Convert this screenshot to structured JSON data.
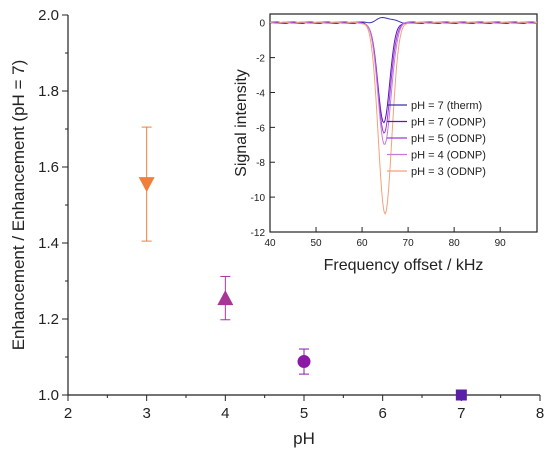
{
  "chart_data": [
    {
      "type": "scatter",
      "xlabel": "pH",
      "ylabel": "Enhancement / Enhancement (pH = 7)",
      "xlim": [
        2,
        8
      ],
      "ylim": [
        1.0,
        2.0
      ],
      "xticks": [
        "2",
        "3",
        "4",
        "5",
        "6",
        "7",
        "8"
      ],
      "yticks": [
        "1.0",
        "1.2",
        "1.4",
        "1.6",
        "1.8",
        "2.0"
      ],
      "grid": false,
      "points": [
        {
          "x": 3,
          "y": 1.555,
          "err": 0.15,
          "marker": "triangle-down",
          "color": "#f07f3c"
        },
        {
          "x": 4,
          "y": 1.255,
          "err": 0.057,
          "marker": "triangle-up",
          "color": "#a83696"
        },
        {
          "x": 5,
          "y": 1.088,
          "err": 0.033,
          "marker": "circle",
          "color": "#8a1aa6"
        },
        {
          "x": 7,
          "y": 1.0,
          "err": 0.0,
          "marker": "square",
          "color": "#5b1ea6"
        }
      ]
    },
    {
      "type": "line",
      "xlabel": "Frequency offset / kHz",
      "ylabel": "Signal intensity",
      "xlim": [
        40,
        98
      ],
      "ylim": [
        -12,
        0.5
      ],
      "xticks": [
        "40",
        "50",
        "60",
        "70",
        "80",
        "90"
      ],
      "yticks": [
        "0",
        "-2",
        "-4",
        "-6",
        "-8",
        "-10",
        "-12"
      ],
      "legend_position": "center-right",
      "series": [
        {
          "name": "pH = 7 (therm)",
          "color": "#3b2fb0",
          "center": 65.0,
          "width": 1.6,
          "depth": 0.3,
          "sign": 1
        },
        {
          "name": "pH = 7 (ODNP)",
          "color": "#5a16c4",
          "center": 64.7,
          "width": 1.3,
          "depth": 5.7,
          "sign": -1
        },
        {
          "name": "pH = 5 (ODNP)",
          "color": "#a03bd2",
          "center": 64.8,
          "width": 1.35,
          "depth": 6.3,
          "sign": -1
        },
        {
          "name": "pH = 4 (ODNP)",
          "color": "#c77ad6",
          "center": 64.9,
          "width": 1.4,
          "depth": 7.0,
          "sign": -1
        },
        {
          "name": "pH = 3 (ODNP)",
          "color": "#f4a07c",
          "center": 65.0,
          "width": 1.45,
          "depth": 11.0,
          "sign": -1
        }
      ]
    }
  ]
}
